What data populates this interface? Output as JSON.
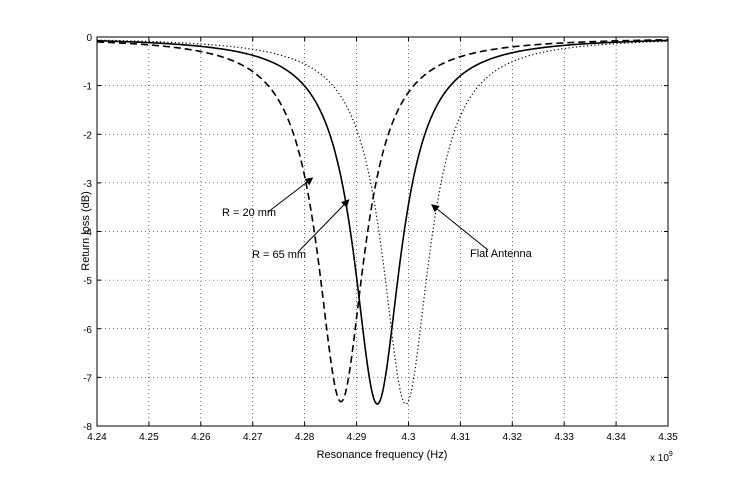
{
  "chart_data": {
    "type": "line",
    "title": "",
    "xlabel": "Resonance frequency (Hz)",
    "ylabel": "Return loss (dB)",
    "x_multiplier_label": "x 10",
    "x_multiplier_exp": "9",
    "xlim": [
      4.24,
      4.35
    ],
    "ylim": [
      -8,
      0
    ],
    "grid": true,
    "x_ticks": [
      "4.24",
      "4.25",
      "4.26",
      "4.27",
      "4.28",
      "4.29",
      "4.3",
      "4.31",
      "4.32",
      "4.33",
      "4.34",
      "4.35"
    ],
    "y_ticks": [
      "0",
      "-1",
      "-2",
      "-3",
      "-4",
      "-5",
      "-6",
      "-7",
      "-8"
    ],
    "series": [
      {
        "name": "R = 20 mm",
        "style": "dashed",
        "center": 4.287,
        "min_db": -7.5,
        "halfwidth": 0.0055
      },
      {
        "name": "R = 65 mm",
        "style": "solid",
        "center": 4.294,
        "min_db": -7.55,
        "halfwidth": 0.0055
      },
      {
        "name": "Flat Antenna",
        "style": "dotted",
        "center": 4.2995,
        "min_db": -7.55,
        "halfwidth": 0.0055
      }
    ],
    "annotations": [
      {
        "text": "R = 20 mm",
        "target": [
          4.2815,
          -2.9
        ]
      },
      {
        "text": "R = 65 mm",
        "target": [
          4.2885,
          -3.35
        ]
      },
      {
        "text": "Flat Antenna",
        "target": [
          4.3045,
          -3.45
        ]
      }
    ]
  }
}
